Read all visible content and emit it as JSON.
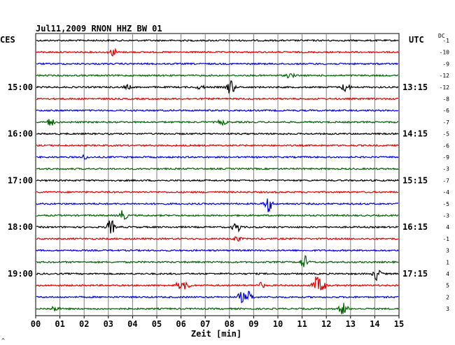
{
  "chart_data": {
    "type": "line",
    "title": "Jul11,2009   RNON HHZ BW 01",
    "left_tz_label": "CES",
    "right_tz_label": "UTC",
    "dc_label": "DC",
    "xlabel": "Zeit [min]",
    "x_ticks": [
      "00",
      "01",
      "02",
      "03",
      "04",
      "05",
      "06",
      "07",
      "08",
      "09",
      "10",
      "11",
      "12",
      "13",
      "14",
      "15"
    ],
    "xlim": [
      0,
      15
    ],
    "grid": true,
    "footer_mark": "^",
    "colors": [
      "#000000",
      "#e00000",
      "#0000e0",
      "#006400"
    ],
    "rows": [
      {
        "left": "",
        "right": "",
        "dc": "-1",
        "events": []
      },
      {
        "left": "",
        "right": "",
        "dc": "-10",
        "events": [
          [
            3.2,
            6
          ]
        ]
      },
      {
        "left": "",
        "right": "",
        "dc": "-9",
        "events": []
      },
      {
        "left": "",
        "right": "",
        "dc": "-12",
        "events": [
          [
            10.5,
            4
          ]
        ]
      },
      {
        "left": "15:00",
        "right": "13:15",
        "dc": "-12",
        "events": [
          [
            3.8,
            3
          ],
          [
            6.8,
            3
          ],
          [
            8.05,
            12
          ],
          [
            12.8,
            7
          ]
        ]
      },
      {
        "left": "",
        "right": "",
        "dc": "-8",
        "events": []
      },
      {
        "left": "",
        "right": "",
        "dc": "-6",
        "events": []
      },
      {
        "left": "",
        "right": "",
        "dc": "-7",
        "events": [
          [
            0.6,
            6
          ],
          [
            7.7,
            4
          ]
        ]
      },
      {
        "left": "16:00",
        "right": "14:15",
        "dc": "-5",
        "events": []
      },
      {
        "left": "",
        "right": "",
        "dc": "-6",
        "events": []
      },
      {
        "left": "",
        "right": "",
        "dc": "-9",
        "events": [
          [
            2.0,
            3
          ]
        ]
      },
      {
        "left": "",
        "right": "",
        "dc": "-3",
        "events": []
      },
      {
        "left": "17:00",
        "right": "15:15",
        "dc": "-7",
        "events": []
      },
      {
        "left": "",
        "right": "",
        "dc": "-4",
        "events": []
      },
      {
        "left": "",
        "right": "",
        "dc": "-5",
        "events": [
          [
            9.6,
            12
          ]
        ]
      },
      {
        "left": "",
        "right": "",
        "dc": "-3",
        "events": [
          [
            3.6,
            8
          ]
        ]
      },
      {
        "left": "18:00",
        "right": "16:15",
        "dc": "4",
        "events": [
          [
            3.1,
            12
          ],
          [
            8.3,
            8
          ]
        ]
      },
      {
        "left": "",
        "right": "",
        "dc": "-1",
        "events": [
          [
            8.3,
            4
          ]
        ]
      },
      {
        "left": "",
        "right": "",
        "dc": "3",
        "events": []
      },
      {
        "left": "",
        "right": "",
        "dc": "1",
        "events": [
          [
            11.1,
            10
          ]
        ]
      },
      {
        "left": "19:00",
        "right": "17:15",
        "dc": "4",
        "events": [
          [
            14.1,
            10
          ]
        ]
      },
      {
        "left": "",
        "right": "",
        "dc": "5",
        "events": [
          [
            5.9,
            5
          ],
          [
            6.2,
            6
          ],
          [
            11.6,
            14
          ],
          [
            11.8,
            12
          ],
          [
            9.3,
            4
          ]
        ]
      },
      {
        "left": "",
        "right": "",
        "dc": "2",
        "events": [
          [
            8.5,
            8
          ],
          [
            8.8,
            8
          ]
        ]
      },
      {
        "left": "",
        "right": "",
        "dc": "3",
        "events": [
          [
            0.8,
            4
          ],
          [
            12.7,
            10
          ]
        ]
      }
    ]
  }
}
